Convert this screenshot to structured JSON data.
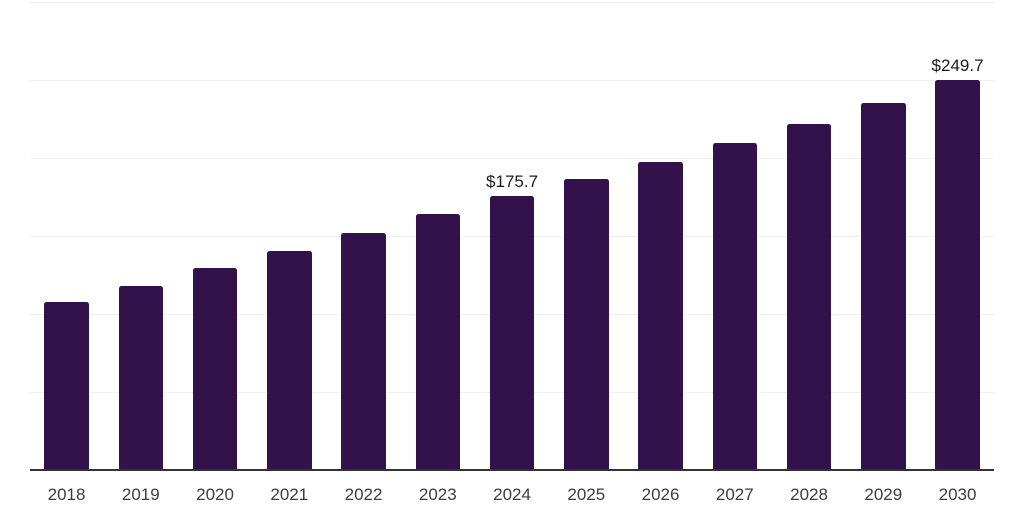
{
  "chart_data": {
    "type": "bar",
    "title": "",
    "xlabel": "",
    "ylabel": "",
    "categories": [
      "2018",
      "2019",
      "2020",
      "2021",
      "2022",
      "2023",
      "2024",
      "2025",
      "2026",
      "2027",
      "2028",
      "2029",
      "2030"
    ],
    "values": [
      107.6,
      118.0,
      129.7,
      140.2,
      151.8,
      164.4,
      175.7,
      186.3,
      197.5,
      209.4,
      222.0,
      235.4,
      249.7
    ],
    "annotations": [
      {
        "category": "2024",
        "text": "$175.7"
      },
      {
        "category": "2030",
        "text": "$249.7"
      }
    ],
    "ylim": [
      0,
      300
    ],
    "gridline_step": 50,
    "grid": "horizontal-only",
    "legend": "none",
    "y_axis_labels_visible": false,
    "colors": {
      "bar": "#33124b",
      "gridline": "#f0f0f0",
      "axis": "#333333",
      "tick_text": "#3d3d3d",
      "data_label_text": "#1c1c1c",
      "background": "#ffffff"
    }
  }
}
